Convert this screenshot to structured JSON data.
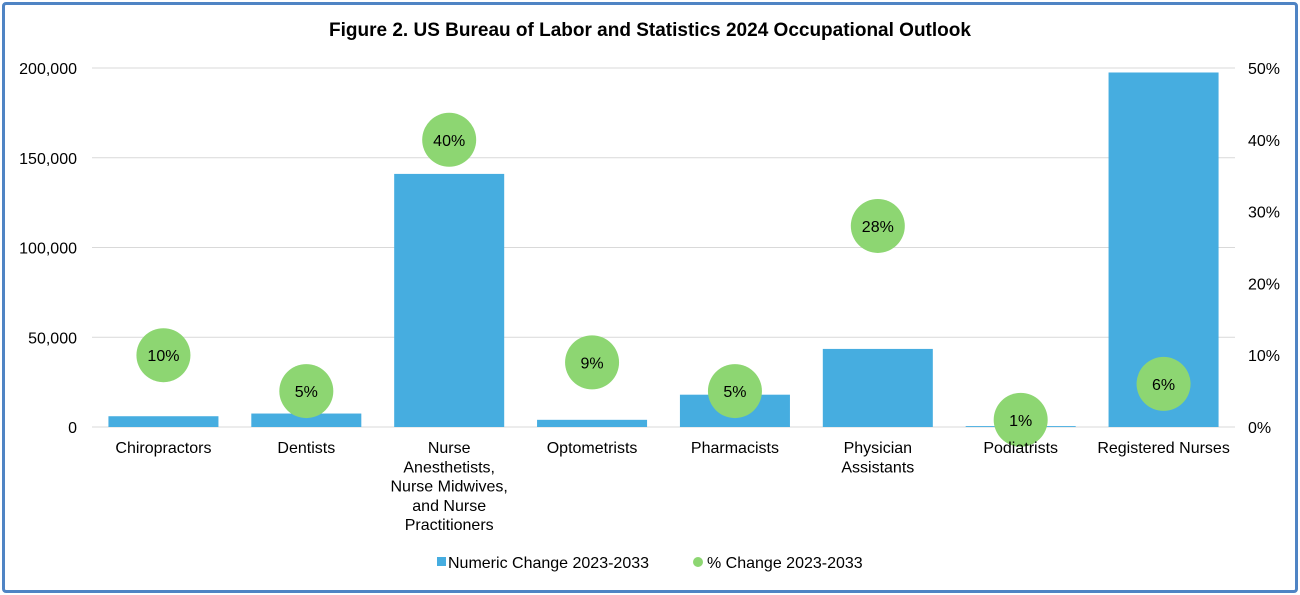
{
  "chart_data": {
    "type": "bar",
    "title": "Figure 2. US Bureau of Labor and Statistics 2024 Occupational Outlook",
    "categories": [
      [
        "Chiropractors"
      ],
      [
        "Dentists"
      ],
      [
        "Nurse",
        "Anesthetists,",
        "Nurse Midwives,",
        "and Nurse",
        "Practitioners"
      ],
      [
        "Optometrists"
      ],
      [
        "Pharmacists"
      ],
      [
        "Physician",
        "Assistants"
      ],
      [
        "Podiatrists"
      ],
      [
        "Registered Nurses"
      ]
    ],
    "series": [
      {
        "name": "Numeric Change 2023-2033",
        "type": "bar",
        "axis": "left",
        "color": "#46ade0",
        "values": [
          6000,
          7500,
          141000,
          4000,
          18000,
          43500,
          500,
          197500
        ]
      },
      {
        "name": "% Change 2023-2033",
        "type": "scatter",
        "axis": "right",
        "color": "#8dd672",
        "values": [
          10,
          5,
          40,
          9,
          5,
          28,
          1,
          6
        ],
        "labels": [
          "10%",
          "5%",
          "40%",
          "9%",
          "5%",
          "28%",
          "1%",
          "6%"
        ]
      }
    ],
    "y_left": {
      "ylim": [
        0,
        200000
      ],
      "ticks": [
        0,
        50000,
        100000,
        150000,
        200000
      ],
      "tick_labels": [
        "0",
        "50,000",
        "100,000",
        "150,000",
        "200,000"
      ]
    },
    "y_right": {
      "ylim": [
        0,
        50
      ],
      "ticks": [
        0,
        10,
        20,
        30,
        40,
        50
      ],
      "tick_labels": [
        "0%",
        "10%",
        "20%",
        "30%",
        "40%",
        "50%"
      ]
    },
    "grid": true,
    "legend": "bottom"
  }
}
